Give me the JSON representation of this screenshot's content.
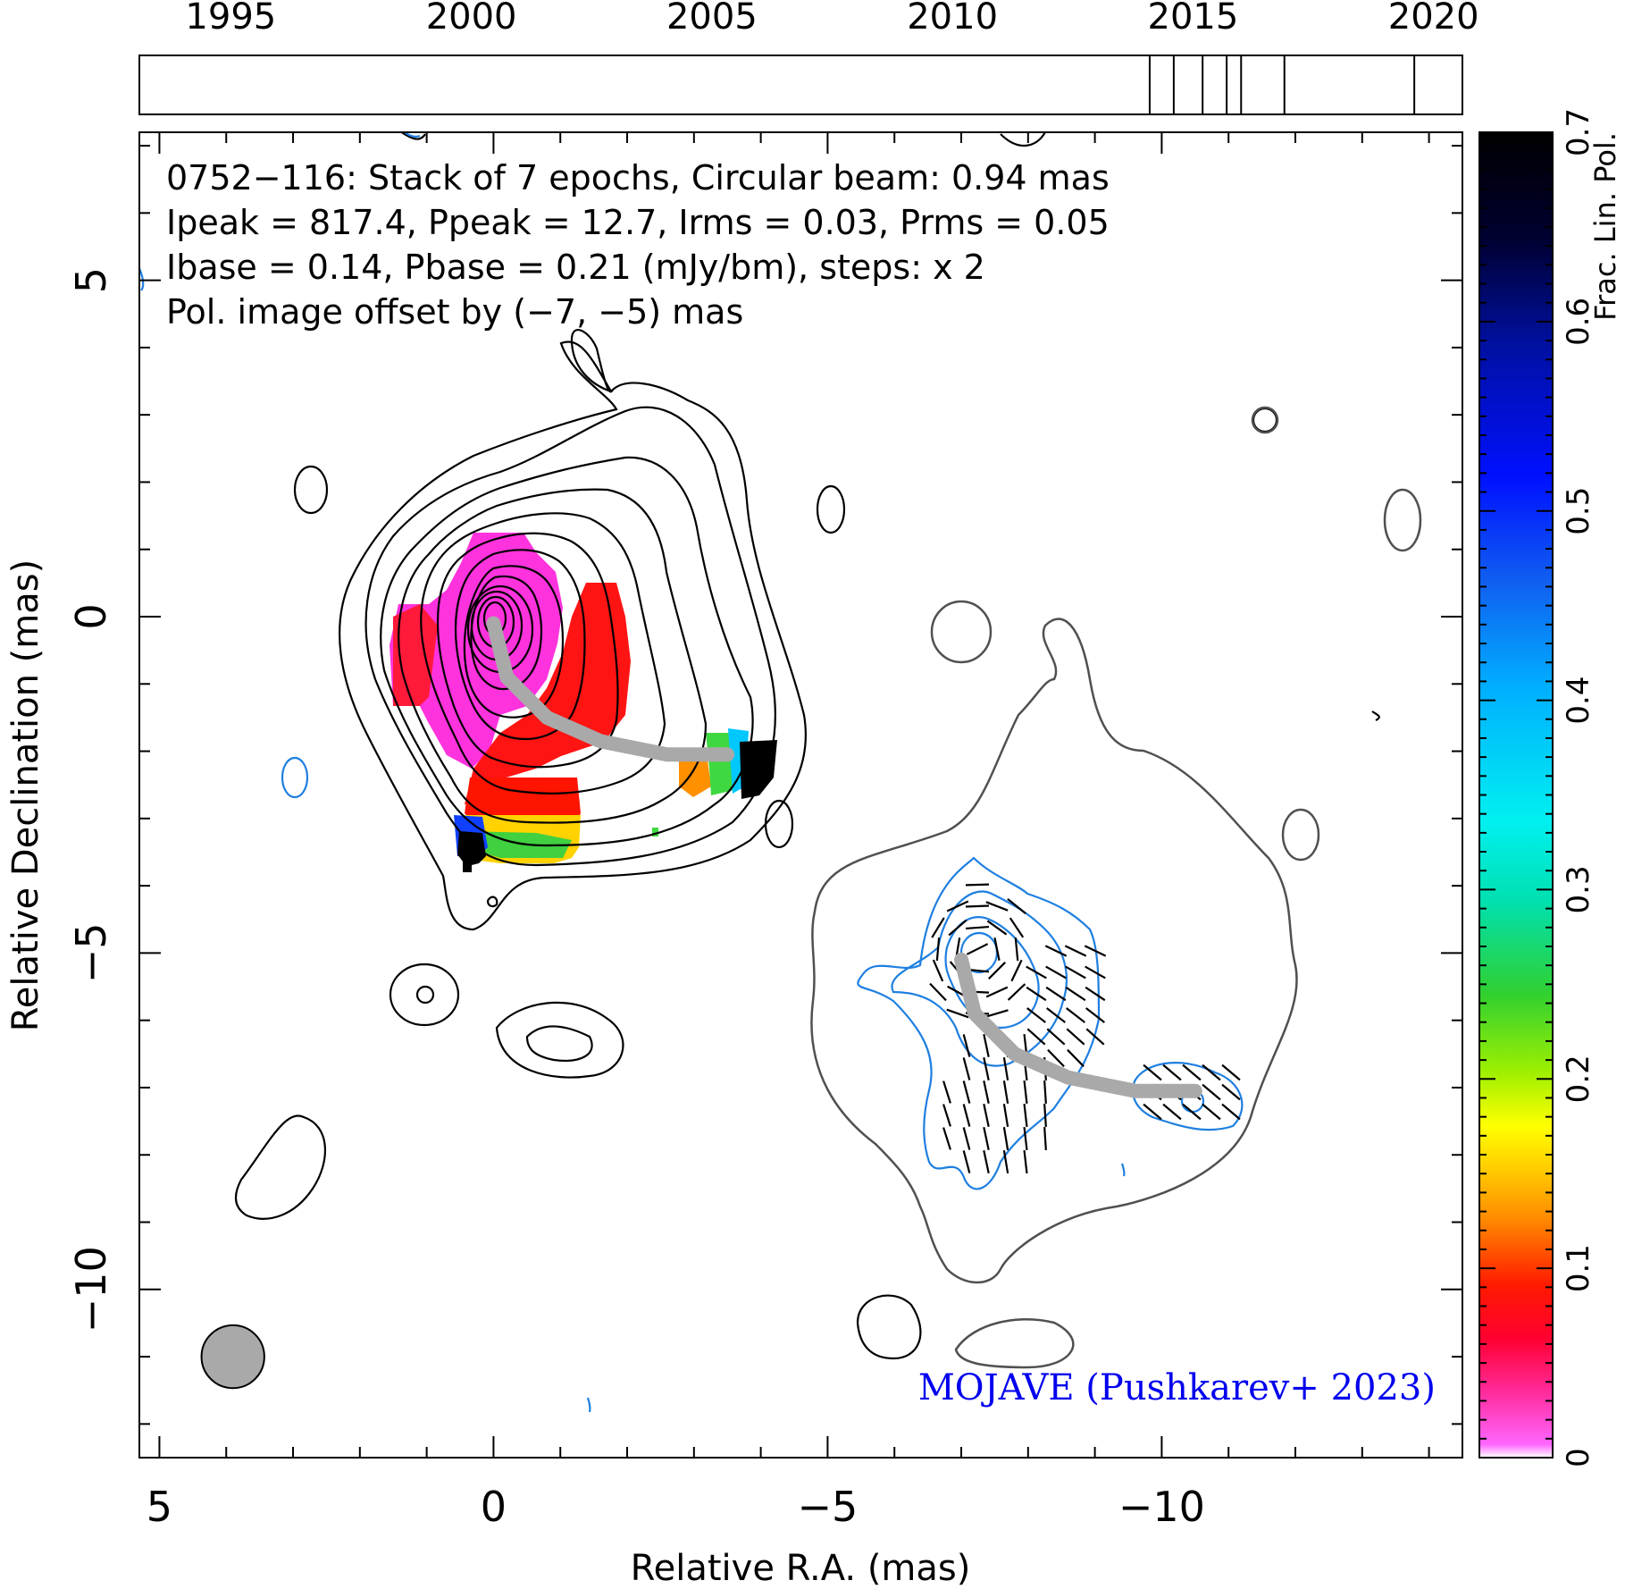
{
  "chart_data": {
    "type": "contour",
    "source": "0752−116",
    "annotations": {
      "line1": "0752−116: Stack of 7 epochs, Circular beam: 0.94 mas",
      "line2": "Ipeak = 817.4, Ppeak = 12.7, Irms = 0.03, Prms = 0.05",
      "line3": "Ibase = 0.14, Pbase = 0.21 (mJy/bm), steps: x 2",
      "pol_offset_note": "Pol. image offset by (−7, −5) mas",
      "credit": "MOJAVE (Pushkarev+ 2023)"
    },
    "colors": {
      "pol_note": "#1e7fe0",
      "credit": "#0000ee",
      "total_intensity_contours": "#000000",
      "pol_contours": "#1e7fe0",
      "offset_contour": "#505050",
      "ridge_line": "#a9a9a9",
      "beam": "#a9a9a9"
    },
    "xlabel": "Relative R.A. (mas)",
    "ylabel": "Relative Declination (mas)",
    "xlim": [
      5.3,
      -14.5
    ],
    "ylim": [
      -12.5,
      7.2
    ],
    "xticks": [
      5,
      0,
      -5,
      -10
    ],
    "xtick_labels": [
      "5",
      "0",
      "−5",
      "−10"
    ],
    "yticks": [
      5,
      0,
      -5,
      -10
    ],
    "ytick_labels": [
      "5",
      "0",
      "−5",
      "−10"
    ],
    "beam": {
      "type": "circular",
      "diameter_mas": 0.94,
      "center_mas": [
        3.9,
        -11.0
      ]
    },
    "epochs": {
      "axis_range": [
        1993.1,
        2020.6
      ],
      "tick_years": [
        1995,
        2000,
        2005,
        2010,
        2015,
        2020
      ],
      "tick_labels": [
        "1995",
        "2000",
        "2005",
        "2010",
        "2015",
        "2020"
      ],
      "epoch_years": [
        2014.1,
        2014.6,
        2015.2,
        2015.7,
        2016.0,
        2016.9,
        2019.6
      ]
    },
    "colorbar": {
      "label": "Frac. Lin. Pol.",
      "range": [
        0,
        0.7
      ],
      "ticks": [
        0,
        0.1,
        0.2,
        0.3,
        0.4,
        0.5,
        0.6,
        0.7
      ],
      "tick_labels": [
        "0",
        "0.1",
        "0.2",
        "0.3",
        "0.4",
        "0.5",
        "0.6",
        "0.7"
      ]
    },
    "ridge_line": {
      "points": [
        [
          0.0,
          -0.1
        ],
        [
          -0.2,
          -0.9
        ],
        [
          -0.8,
          -1.5
        ],
        [
          -1.6,
          -1.85
        ],
        [
          -2.6,
          -2.05
        ],
        [
          -3.5,
          -2.05
        ]
      ]
    },
    "pol_offset_mas": [
      -7,
      -5
    ],
    "ipeak_mJy": 817.4,
    "contour_levels_mJy": [
      0.14,
      0.28,
      0.56,
      1.12,
      2.24,
      4.48,
      8.96,
      17.92,
      35.84,
      71.68,
      143.36,
      286.72,
      573.44
    ]
  }
}
